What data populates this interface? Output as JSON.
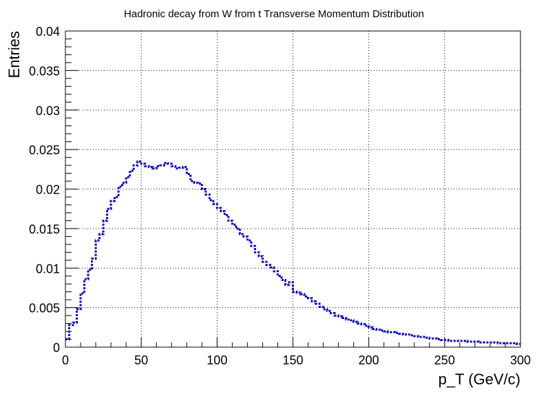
{
  "chart_data": {
    "type": "line",
    "title": "Hadronic decay from W from t Transverse Momentum Distribution",
    "xlabel": "p_T (GeV/c)",
    "ylabel": "Entries",
    "xlim": [
      0,
      300
    ],
    "ylim": [
      0,
      0.04
    ],
    "grid": true,
    "style": "histogram-step-dotted",
    "color": "#0000cc",
    "xticks": [
      "0",
      "50",
      "100",
      "150",
      "200",
      "250",
      "300"
    ],
    "yticks": [
      "0",
      "0.005",
      "0.01",
      "0.015",
      "0.02",
      "0.025",
      "0.03",
      "0.035",
      "0.04"
    ],
    "bin_width": 2.5,
    "values": [
      0.001,
      0.0028,
      0.0031,
      0.0048,
      0.0068,
      0.0086,
      0.0098,
      0.0112,
      0.0135,
      0.0143,
      0.016,
      0.0175,
      0.0185,
      0.019,
      0.0203,
      0.0208,
      0.0215,
      0.0223,
      0.023,
      0.0235,
      0.0232,
      0.0229,
      0.0228,
      0.0226,
      0.0229,
      0.023,
      0.0233,
      0.0232,
      0.0229,
      0.0226,
      0.0227,
      0.0228,
      0.0219,
      0.021,
      0.0208,
      0.0207,
      0.02,
      0.0193,
      0.0186,
      0.0181,
      0.0176,
      0.0172,
      0.0167,
      0.016,
      0.0155,
      0.015,
      0.0143,
      0.014,
      0.0135,
      0.0128,
      0.012,
      0.0115,
      0.0108,
      0.0104,
      0.0101,
      0.0096,
      0.009,
      0.0085,
      0.0079,
      0.0082,
      0.007,
      0.0069,
      0.0067,
      0.0064,
      0.0062,
      0.0058,
      0.0055,
      0.0051,
      0.0048,
      0.0046,
      0.0043,
      0.004,
      0.0039,
      0.0037,
      0.0035,
      0.0034,
      0.0032,
      0.003,
      0.0029,
      0.0027,
      0.0025,
      0.0023,
      0.0022,
      0.0021,
      0.002,
      0.0019,
      0.0019,
      0.0018,
      0.0017,
      0.0016,
      0.0016,
      0.0015,
      0.0014,
      0.0013,
      0.0013,
      0.0012,
      0.0011,
      0.0011,
      0.001,
      0.0009,
      0.0009,
      0.0008,
      0.0008,
      0.0008,
      0.0008,
      0.0008,
      0.0007,
      0.0007,
      0.0007,
      0.0006,
      0.0006,
      0.0006,
      0.0006,
      0.0006,
      0.0005,
      0.0005,
      0.0005,
      0.0005,
      0.0005,
      0.0004
    ]
  }
}
